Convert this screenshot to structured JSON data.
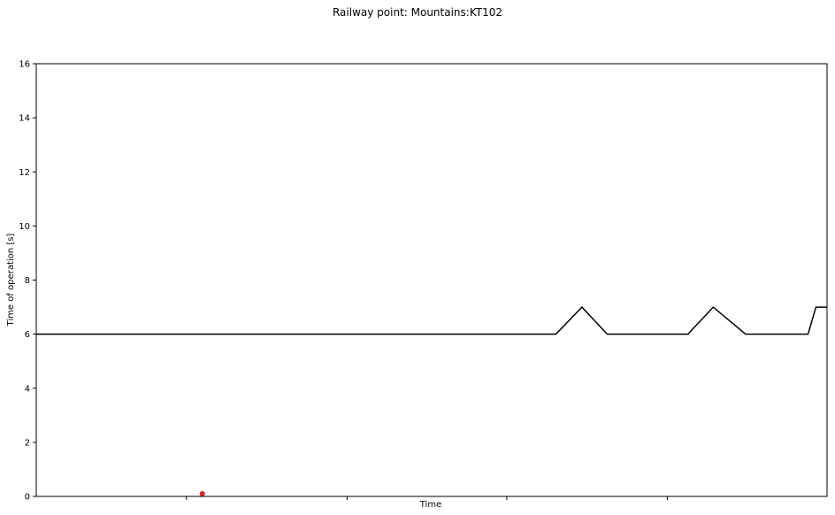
{
  "chart_data": {
    "type": "line",
    "title": "Railway point: Mountains:KT102",
    "xlabel": "Time",
    "ylabel": "Time of operation [s]",
    "xlim": [
      0,
      100
    ],
    "ylim": [
      0,
      16
    ],
    "yticks": [
      0,
      2,
      4,
      6,
      8,
      10,
      12,
      14,
      16
    ],
    "xticks": [
      19,
      39.3,
      59.5,
      79.8
    ],
    "x_tick_labels_shown": false,
    "grid": false,
    "series": [
      {
        "color": "#000000",
        "style": "line",
        "x": [
          0,
          65.7,
          69,
          72.2,
          82.4,
          85.6,
          89.7,
          97.6,
          98.6,
          100
        ],
        "y": [
          6,
          6,
          7,
          6,
          6,
          7,
          6,
          6,
          7,
          7
        ]
      },
      {
        "color": "#d62728",
        "style": "point",
        "x": [
          21
        ],
        "y": [
          0.1
        ]
      }
    ]
  }
}
